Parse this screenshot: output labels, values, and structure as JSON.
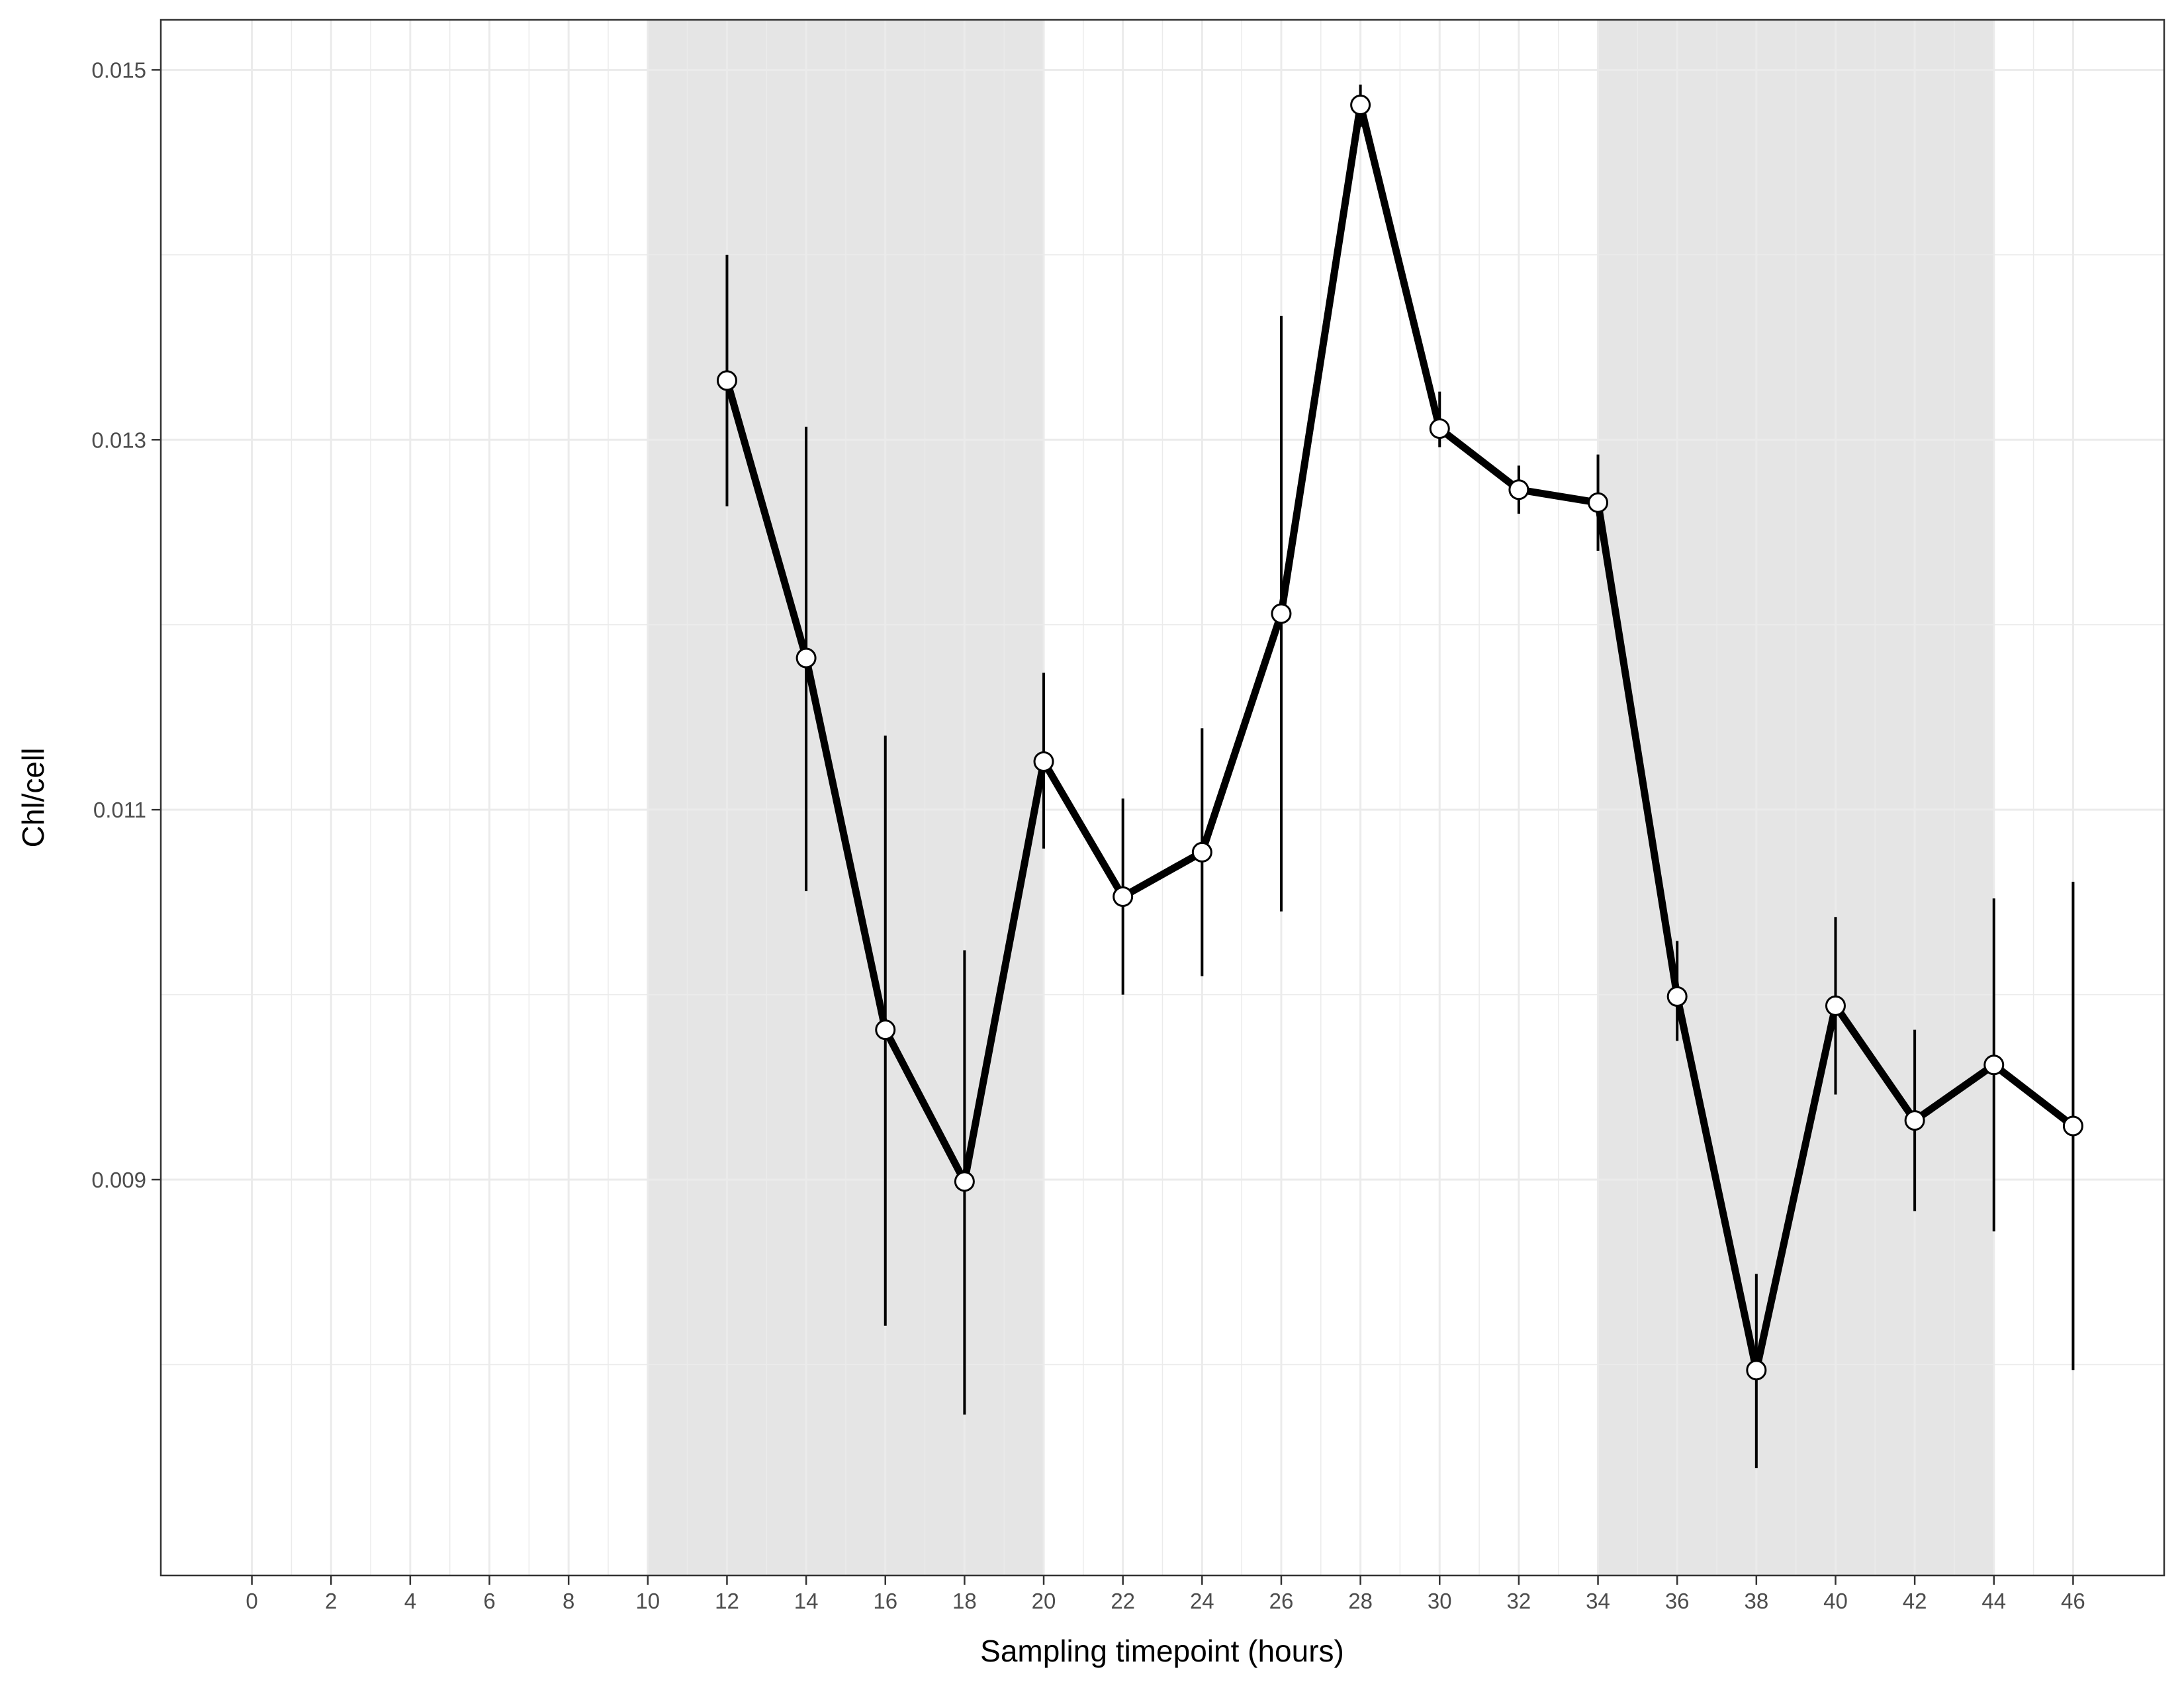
{
  "chart_data": {
    "type": "line",
    "title": "",
    "xlabel": "Sampling timepoint (hours)",
    "ylabel": "Chl/cell",
    "xlim": [
      -2.3,
      48.3
    ],
    "ylim": [
      0.00686,
      0.01527
    ],
    "xticks": [
      0,
      2,
      4,
      6,
      8,
      10,
      12,
      14,
      16,
      18,
      20,
      22,
      24,
      26,
      28,
      30,
      32,
      34,
      36,
      38,
      40,
      42,
      44,
      46
    ],
    "yticks": [
      0.009,
      0.011,
      0.013,
      0.015
    ],
    "ytick_labels": [
      "0.009",
      "0.011",
      "0.013",
      "0.015"
    ],
    "grid": true,
    "dark_periods": [
      [
        10,
        20
      ],
      [
        34,
        44
      ]
    ],
    "dark_period_color": "#e5e5e5",
    "line_color": "#000000",
    "point_fill": "#ffffff",
    "series": [
      {
        "x": [
          12,
          14,
          16,
          18,
          20,
          22,
          24,
          26,
          28,
          30,
          32,
          34,
          36,
          38,
          40,
          42,
          44,
          46
        ],
        "values": [
          0.01332,
          0.01182,
          0.00981,
          0.00899,
          0.01126,
          0.01053,
          0.01077,
          0.01206,
          0.01481,
          0.01306,
          0.01273,
          0.01266,
          0.00999,
          0.00797,
          0.00994,
          0.00932,
          0.00962,
          0.00929
        ],
        "error_low": [
          0.01264,
          0.01056,
          0.00821,
          0.00773,
          0.01079,
          0.01,
          0.0101,
          0.01045,
          0.01469,
          0.01296,
          0.0126,
          0.0124,
          0.00975,
          0.00744,
          0.00946,
          0.00883,
          0.00872,
          0.00797
        ],
        "error_high": [
          0.014,
          0.01307,
          0.0114,
          0.01024,
          0.01174,
          0.01106,
          0.01144,
          0.01367,
          0.01492,
          0.01326,
          0.01286,
          0.01292,
          0.01029,
          0.00849,
          0.01042,
          0.00981,
          0.01052,
          0.01061
        ]
      }
    ]
  }
}
